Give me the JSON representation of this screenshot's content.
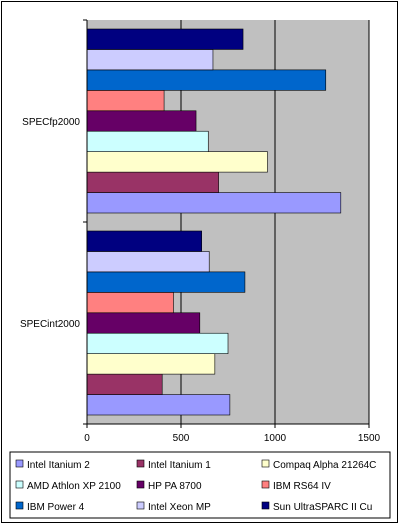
{
  "chart_data": {
    "type": "bar",
    "orientation": "horizontal",
    "categories": [
      "SPECint2000",
      "SPECfp2000"
    ],
    "xlim": [
      0,
      1500
    ],
    "xticks": [
      0,
      500,
      1000,
      1500
    ],
    "grid": true,
    "plot_background": "#c0c0c0",
    "legend_position": "bottom",
    "series": [
      {
        "name": "Intel Itanium 2",
        "color": "#9999ff",
        "values": [
          760,
          1350
        ]
      },
      {
        "name": "Intel Itanium 1",
        "color": "#993366",
        "values": [
          400,
          700
        ]
      },
      {
        "name": "Compaq Alpha 21264C",
        "color": "#ffffcc",
        "values": [
          680,
          960
        ]
      },
      {
        "name": "AMD Athlon XP 2100",
        "color": "#ccffff",
        "values": [
          750,
          645
        ]
      },
      {
        "name": "HP PA 8700",
        "color": "#660066",
        "values": [
          600,
          580
        ]
      },
      {
        "name": "IBM RS64 IV",
        "color": "#ff8080",
        "values": [
          460,
          410
        ]
      },
      {
        "name": "IBM Power 4",
        "color": "#0066cc",
        "values": [
          840,
          1270
        ]
      },
      {
        "name": "Intel Xeon MP",
        "color": "#ccccff",
        "values": [
          650,
          670
        ]
      },
      {
        "name": "Sun UltraSPARC II Cu",
        "color": "#000080",
        "values": [
          610,
          830
        ]
      }
    ]
  }
}
